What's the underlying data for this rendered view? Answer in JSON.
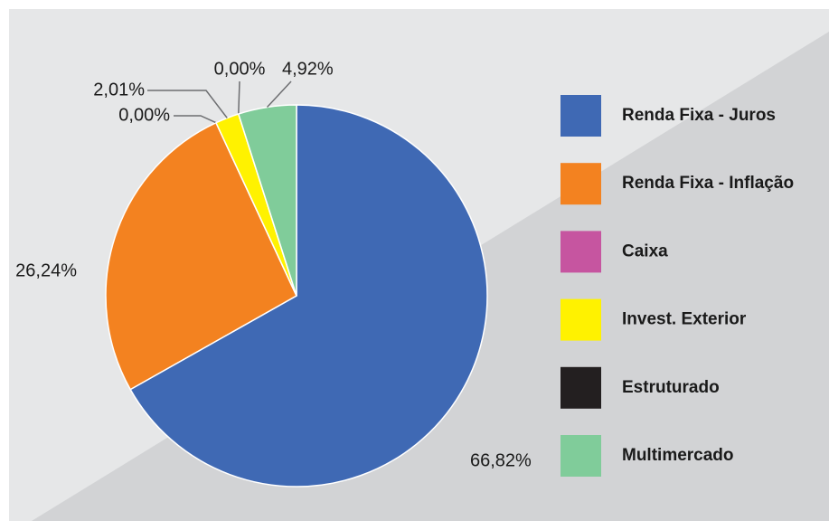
{
  "chart_data": {
    "type": "pie",
    "categories": [
      "Renda Fixa - Juros",
      "Renda Fixa - Inflação",
      "Caixa",
      "Invest. Exterior",
      "Estruturado",
      "Multimercado"
    ],
    "values": [
      66.82,
      26.24,
      0.0,
      2.01,
      0.0,
      4.92
    ],
    "value_labels": [
      "66,82%",
      "26,24%",
      "0,00%",
      "2,01%",
      "0,00%",
      "4,92%"
    ],
    "colors": [
      "#3f69b4",
      "#f38220",
      "#c655a0",
      "#fff200",
      "#231f20",
      "#80cc9a"
    ]
  }
}
